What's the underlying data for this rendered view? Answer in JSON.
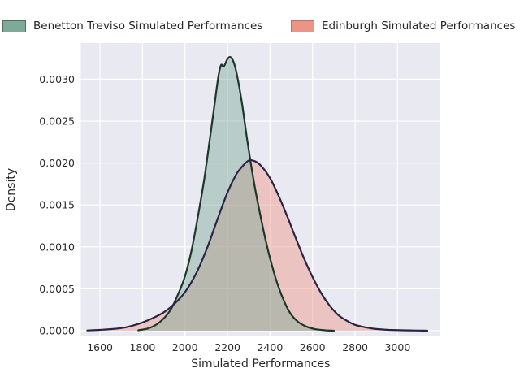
{
  "legend": {
    "items": [
      {
        "label": "Benetton Treviso Simulated Performances",
        "swatch_fill": "#7cab9a",
        "swatch_border": "#5a6b62"
      },
      {
        "label": "Edinburgh Simulated Performances",
        "swatch_fill": "#ee9486",
        "swatch_border": "#bd7265"
      }
    ]
  },
  "chart_data": {
    "type": "area",
    "subtype": "kde-density",
    "title": "",
    "xlabel": "Simulated Performances",
    "ylabel": "Density",
    "xlim": [
      1510,
      3201
    ],
    "ylim": [
      -6.8e-05,
      0.00343
    ],
    "xticks": [
      1600,
      1800,
      2000,
      2200,
      2400,
      2600,
      2800,
      3000
    ],
    "ytick_values": [
      0.0,
      0.0005,
      0.001,
      0.0015,
      0.002,
      0.0025,
      0.003
    ],
    "ytick_labels": [
      "0.0000",
      "0.0005",
      "0.0010",
      "0.0015",
      "0.0020",
      "0.0025",
      "0.0030"
    ],
    "grid": true,
    "legend_position": "top",
    "plot_background": "#e9e9f1",
    "gridline_color": "#ffffff",
    "tick_label_color": "#2b2b2b",
    "axis_label_color": "#262626",
    "series": [
      {
        "name": "Benetton Treviso Simulated Performances",
        "line_color": "#203529",
        "fill_color": "#7cab9a",
        "fill_opacity": 0.45,
        "peak": {
          "x": 2215,
          "y": 0.00326
        },
        "points": [
          [
            1780,
            5e-06
          ],
          [
            1830,
            3e-05
          ],
          [
            1880,
            0.0001
          ],
          [
            1930,
            0.00024
          ],
          [
            1970,
            0.00045
          ],
          [
            2000,
            0.00065
          ],
          [
            2030,
            0.00095
          ],
          [
            2060,
            0.00135
          ],
          [
            2090,
            0.0018
          ],
          [
            2115,
            0.00225
          ],
          [
            2140,
            0.00272
          ],
          [
            2158,
            0.00305
          ],
          [
            2170,
            0.00317
          ],
          [
            2182,
            0.00315
          ],
          [
            2200,
            0.00324
          ],
          [
            2215,
            0.00326
          ],
          [
            2232,
            0.00318
          ],
          [
            2250,
            0.00298
          ],
          [
            2270,
            0.00268
          ],
          [
            2290,
            0.00232
          ],
          [
            2310,
            0.00199
          ],
          [
            2330,
            0.00169
          ],
          [
            2355,
            0.00137
          ],
          [
            2380,
            0.00107
          ],
          [
            2410,
            0.00077
          ],
          [
            2440,
            0.00052
          ],
          [
            2470,
            0.00033
          ],
          [
            2500,
            0.00019
          ],
          [
            2535,
            0.0001
          ],
          [
            2570,
            5e-05
          ],
          [
            2610,
            2e-05
          ],
          [
            2660,
            5e-06
          ],
          [
            2700,
            0
          ]
        ]
      },
      {
        "name": "Edinburgh Simulated Performances",
        "line_color": "#2b2344",
        "fill_color": "#ee9486",
        "fill_opacity": 0.45,
        "peak": {
          "x": 2300,
          "y": 0.00203
        },
        "points": [
          [
            1540,
            3e-06
          ],
          [
            1600,
            1e-05
          ],
          [
            1660,
            2e-05
          ],
          [
            1720,
            4e-05
          ],
          [
            1780,
            8e-05
          ],
          [
            1840,
            0.00014
          ],
          [
            1900,
            0.00022
          ],
          [
            1950,
            0.00032
          ],
          [
            2000,
            0.00046
          ],
          [
            2050,
            0.00067
          ],
          [
            2100,
            0.00096
          ],
          [
            2150,
            0.00131
          ],
          [
            2200,
            0.00165
          ],
          [
            2240,
            0.00186
          ],
          [
            2270,
            0.00196
          ],
          [
            2300,
            0.00203
          ],
          [
            2330,
            0.00202
          ],
          [
            2360,
            0.00196
          ],
          [
            2400,
            0.00182
          ],
          [
            2440,
            0.00161
          ],
          [
            2480,
            0.00137
          ],
          [
            2520,
            0.00111
          ],
          [
            2560,
            0.00086
          ],
          [
            2600,
            0.00064
          ],
          [
            2640,
            0.00045
          ],
          [
            2680,
            0.0003
          ],
          [
            2720,
            0.00019
          ],
          [
            2760,
            0.00012
          ],
          [
            2800,
            7e-05
          ],
          [
            2850,
            4e-05
          ],
          [
            2900,
            2e-05
          ],
          [
            2960,
            1e-05
          ],
          [
            3030,
            5e-06
          ],
          [
            3100,
            2e-06
          ],
          [
            3140,
            0
          ]
        ]
      }
    ]
  }
}
